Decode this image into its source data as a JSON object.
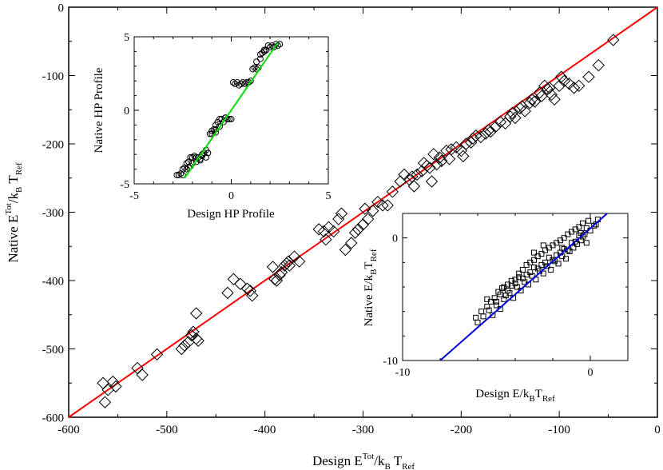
{
  "chart_data": [
    {
      "id": "main",
      "type": "scatter",
      "xlabel": "Design E^Tot/k_B T_Ref",
      "ylabel": "Native E^Tot/k_B T_Ref",
      "xlim": [
        -600,
        0
      ],
      "ylim": [
        -600,
        0
      ],
      "xticks": [
        -600,
        -500,
        -400,
        -300,
        -200,
        -100,
        0
      ],
      "yticks": [
        -600,
        -500,
        -400,
        -300,
        -200,
        -100,
        0
      ],
      "marker": "diamond",
      "line": {
        "x": [
          -600,
          0
        ],
        "y": [
          -600,
          0
        ],
        "color": "#ff0000"
      },
      "series": [
        {
          "x": [
            -565,
            -563,
            -560,
            -555,
            -552,
            -530,
            -525,
            -510,
            -485,
            -482,
            -478,
            -475,
            -473,
            -470,
            -470,
            -468,
            -438,
            -432,
            -425,
            -418,
            -415,
            -413,
            -392,
            -390,
            -388,
            -385,
            -383,
            -380,
            -378,
            -376,
            -375,
            -370,
            -365,
            -345,
            -340,
            -338,
            -335,
            -330,
            -325,
            -322,
            -318,
            -312,
            -308,
            -305,
            -300,
            -298,
            -295,
            -290,
            -285,
            -280,
            -275,
            -270,
            -262,
            -258,
            -253,
            -250,
            -248,
            -245,
            -240,
            -238,
            -235,
            -232,
            -230,
            -228,
            -225,
            -222,
            -220,
            -215,
            -212,
            -210,
            -205,
            -200,
            -198,
            -195,
            -190,
            -188,
            -185,
            -180,
            -175,
            -172,
            -170,
            -165,
            -160,
            -155,
            -150,
            -148,
            -145,
            -140,
            -138,
            -135,
            -130,
            -128,
            -125,
            -120,
            -118,
            -115,
            -112,
            -110,
            -108,
            -105,
            -100,
            -98,
            -95,
            -90,
            -85,
            -80,
            -70,
            -60,
            -45
          ],
          "y": [
            -550,
            -578,
            -560,
            -548,
            -555,
            -528,
            -538,
            -508,
            -500,
            -495,
            -490,
            -480,
            -475,
            -448,
            -485,
            -488,
            -418,
            -398,
            -405,
            -412,
            -415,
            -422,
            -380,
            -398,
            -400,
            -392,
            -388,
            -378,
            -375,
            -372,
            -378,
            -365,
            -372,
            -325,
            -328,
            -340,
            -322,
            -328,
            -310,
            -302,
            -355,
            -345,
            -330,
            -325,
            -318,
            -295,
            -310,
            -298,
            -285,
            -290,
            -290,
            -270,
            -255,
            -245,
            -252,
            -248,
            -262,
            -245,
            -240,
            -228,
            -232,
            -235,
            -255,
            -215,
            -230,
            -220,
            -225,
            -210,
            -222,
            -208,
            -205,
            -210,
            -218,
            -200,
            -198,
            -192,
            -188,
            -190,
            -185,
            -180,
            -182,
            -175,
            -168,
            -170,
            -160,
            -155,
            -162,
            -148,
            -145,
            -152,
            -140,
            -135,
            -138,
            -125,
            -130,
            -115,
            -120,
            -118,
            -128,
            -135,
            -115,
            -102,
            -108,
            -112,
            -118,
            -115,
            -102,
            -85,
            -48
          ]
        }
      ]
    },
    {
      "id": "inset-hp",
      "type": "scatter",
      "xlabel": "Design HP Profile",
      "ylabel": "Native HP Profile",
      "xlim": [
        -5,
        5
      ],
      "ylim": [
        -5,
        5
      ],
      "xticks": [
        -5,
        0,
        5
      ],
      "yticks": [
        -5,
        0,
        5
      ],
      "marker": "circle",
      "line": {
        "x": [
          -2.4,
          2.4
        ],
        "y": [
          -4.6,
          4.6
        ],
        "color": "#00dd00"
      },
      "series": [
        {
          "x": [
            -2.8,
            -2.7,
            -2.6,
            -2.5,
            -2.5,
            -2.4,
            -2.3,
            -2.3,
            -2.2,
            -2.1,
            -2.0,
            -2.0,
            -1.9,
            -1.8,
            -1.8,
            -1.7,
            -1.6,
            -1.5,
            -1.4,
            -1.3,
            -1.2,
            -1.1,
            -1.0,
            -1.0,
            -0.9,
            -0.8,
            -0.8,
            -0.7,
            -0.6,
            -0.5,
            -0.4,
            -0.3,
            -0.3,
            -0.2,
            -0.1,
            0.0,
            0.1,
            0.2,
            0.3,
            0.4,
            0.5,
            0.6,
            0.7,
            0.8,
            0.9,
            1.0,
            1.1,
            1.2,
            1.3,
            1.4,
            1.5,
            1.6,
            1.7,
            1.8,
            1.9,
            2.0,
            2.1,
            2.2,
            2.3,
            2.4,
            2.5,
            1.3,
            1.5,
            1.7,
            -1.6,
            -1.5,
            -1.3,
            -2.1,
            -2.2,
            -0.8,
            -0.6
          ],
          "y": [
            -4.4,
            -4.4,
            -4.3,
            -4.0,
            -4.4,
            -3.9,
            -3.6,
            -4.0,
            -3.5,
            -3.2,
            -3.2,
            -3.6,
            -3.1,
            -3.2,
            -3.5,
            -3.2,
            -3.3,
            -3.0,
            -2.9,
            -2.7,
            -2.9,
            -1.6,
            -1.4,
            -1.6,
            -1.3,
            -1.5,
            -1.0,
            -0.8,
            -0.6,
            -0.6,
            -0.8,
            -0.5,
            -0.5,
            -0.6,
            -0.6,
            -0.6,
            1.9,
            1.8,
            1.9,
            1.7,
            1.8,
            1.9,
            1.8,
            1.9,
            1.9,
            2.0,
            2.8,
            2.9,
            2.8,
            2.9,
            3.8,
            3.9,
            4.1,
            4.1,
            4.4,
            4.3,
            4.4,
            4.3,
            4.5,
            4.4,
            4.5,
            3.3,
            3.5,
            4.0,
            -3.4,
            -3.1,
            -3.2,
            -3.8,
            -3.9,
            -1.3,
            -1.1
          ]
        }
      ]
    },
    {
      "id": "inset-e",
      "type": "scatter",
      "xlabel": "Design E/k_B T_Ref",
      "ylabel": "Native E/k_B T_Ref",
      "xlim": [
        -10,
        2
      ],
      "ylim": [
        -10,
        2
      ],
      "xticks": [
        -10,
        0
      ],
      "yticks": [
        -10,
        0
      ],
      "marker": "square",
      "line": {
        "x": [
          -8,
          0.9
        ],
        "y": [
          -10,
          2
        ],
        "color": "#0000dd"
      },
      "series": [
        {
          "x": [
            -6.1,
            -6.0,
            -5.8,
            -5.7,
            -5.5,
            -5.4,
            -5.3,
            -5.2,
            -5.1,
            -5.0,
            -4.9,
            -4.8,
            -4.7,
            -4.6,
            -4.5,
            -4.4,
            -4.3,
            -4.2,
            -4.1,
            -4.0,
            -3.9,
            -3.8,
            -3.7,
            -3.6,
            -3.5,
            -3.4,
            -3.3,
            -3.2,
            -3.1,
            -3.0,
            -2.9,
            -2.8,
            -2.7,
            -2.6,
            -2.5,
            -2.4,
            -2.3,
            -2.2,
            -2.1,
            -2.0,
            -1.9,
            -1.8,
            -1.7,
            -1.6,
            -1.5,
            -1.4,
            -1.3,
            -1.2,
            -1.1,
            -1.0,
            -0.9,
            -0.8,
            -0.7,
            -0.6,
            -0.5,
            -0.4,
            -0.3,
            -0.2,
            -0.1,
            0.0,
            0.2,
            0.4,
            -5.0,
            -4.6,
            -4.2,
            -3.8,
            -3.4,
            -3.0,
            -2.6,
            -2.2,
            -1.8,
            -1.4,
            -1.0,
            -0.6,
            -4.8,
            -4.4,
            -4.0,
            -3.6,
            -3.2,
            -2.8,
            -2.4,
            -2.0,
            -1.6,
            -1.2,
            -0.8,
            -0.4,
            -5.5,
            -3.0,
            -2.5,
            -1.5,
            -0.5,
            -0.2,
            0.3
          ],
          "y": [
            -6.5,
            -6.9,
            -6.0,
            -6.4,
            -5.6,
            -5.9,
            -5.2,
            -6.3,
            -4.9,
            -5.5,
            -4.4,
            -5.8,
            -4.1,
            -5.0,
            -4.7,
            -3.8,
            -4.5,
            -3.5,
            -4.9,
            -3.4,
            -4.0,
            -2.9,
            -4.3,
            -2.6,
            -3.6,
            -2.2,
            -3.8,
            -2.0,
            -3.1,
            -1.8,
            -3.4,
            -1.5,
            -2.7,
            -1.3,
            -2.9,
            -1.0,
            -2.3,
            -0.8,
            -2.6,
            -0.6,
            -1.9,
            -0.4,
            -2.1,
            -0.2,
            -1.5,
            0.0,
            -1.7,
            0.3,
            -1.1,
            0.5,
            -0.8,
            0.7,
            -0.5,
            0.9,
            -0.2,
            1.2,
            0.3,
            0.8,
            1.4,
            0.6,
            1.0,
            1.5,
            -5.2,
            -4.0,
            -3.9,
            -3.2,
            -3.0,
            -2.4,
            -2.2,
            -1.6,
            -1.4,
            -0.9,
            -0.4,
            0.2,
            -4.6,
            -4.3,
            -3.7,
            -3.3,
            -2.8,
            -2.5,
            -2.0,
            -1.8,
            -1.2,
            -1.0,
            -0.3,
            0.1,
            -5.0,
            -1.2,
            -0.6,
            -0.8,
            0.4,
            -0.4,
            1.1
          ]
        }
      ]
    }
  ]
}
